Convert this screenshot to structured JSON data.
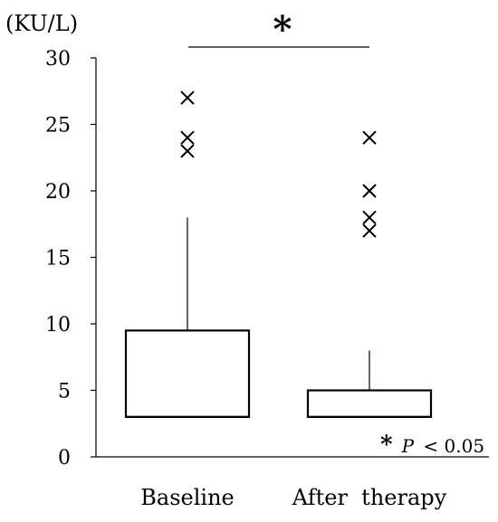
{
  "chart_data": {
    "type": "box",
    "unit_label": "(KU/L)",
    "y_ticks": [
      0,
      5,
      10,
      15,
      20,
      25,
      30
    ],
    "ylim": [
      0,
      30
    ],
    "grid": false,
    "categories": [
      "Baseline",
      "After  therapy"
    ],
    "boxes": [
      {
        "category": "Baseline",
        "whisker_low": 3,
        "q1": 3,
        "median": 3,
        "q3": 9.5,
        "whisker_high": 18,
        "outliers": [
          27,
          24,
          23
        ]
      },
      {
        "category": "After  therapy",
        "whisker_low": 3,
        "q1": 3,
        "median": 3,
        "q3": 5,
        "whisker_high": 8,
        "outliers": [
          24,
          20,
          18,
          17
        ]
      }
    ],
    "significance": {
      "marker": "*",
      "note_marker": "*",
      "note_p": "P",
      "note_rest": " < 0.05"
    }
  }
}
